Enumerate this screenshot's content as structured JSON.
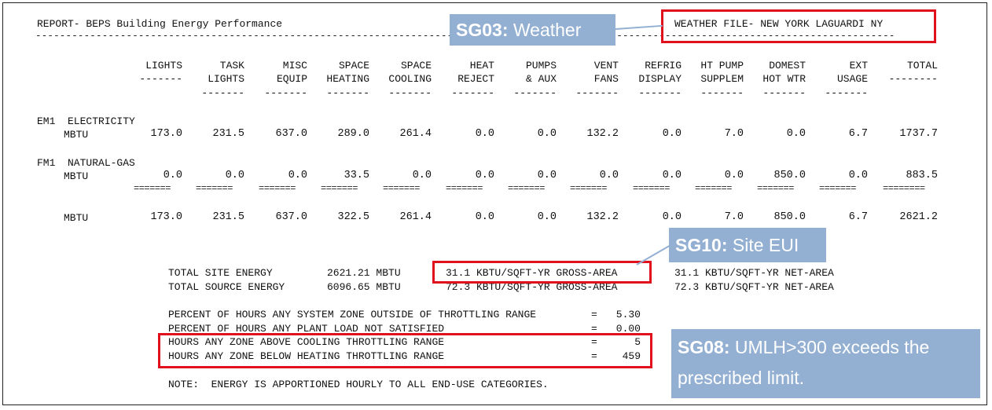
{
  "report_title": "REPORT- BEPS Building Energy Performance",
  "weather_file": "WEATHER FILE- NEW YORK LAGUARDI NY",
  "columns": [
    {
      "l1": "",
      "l2": "LIGHTS"
    },
    {
      "l1": "TASK",
      "l2": "LIGHTS"
    },
    {
      "l1": "MISC",
      "l2": "EQUIP"
    },
    {
      "l1": "SPACE",
      "l2": "HEATING"
    },
    {
      "l1": "SPACE",
      "l2": "COOLING"
    },
    {
      "l1": "HEAT",
      "l2": "REJECT"
    },
    {
      "l1": "PUMPS",
      "l2": "& AUX"
    },
    {
      "l1": "VENT",
      "l2": "FANS"
    },
    {
      "l1": "REFRIG",
      "l2": "DISPLAY"
    },
    {
      "l1": "HT PUMP",
      "l2": "SUPPLEM"
    },
    {
      "l1": "DOMEST",
      "l2": "HOT WTR"
    },
    {
      "l1": "EXT",
      "l2": "USAGE"
    },
    {
      "l1": "",
      "l2": "TOTAL"
    }
  ],
  "col_underline": "-------",
  "col_total_underline": "--------",
  "meters": [
    {
      "label": "EM1  ELECTRICITY",
      "unit": "MBTU",
      "values": [
        "173.0",
        "231.5",
        "637.0",
        "289.0",
        "261.4",
        "0.0",
        "0.0",
        "132.2",
        "0.0",
        "7.0",
        "0.0",
        "6.7",
        "1737.7"
      ]
    },
    {
      "label": "FM1  NATURAL-GAS",
      "unit": "MBTU",
      "values": [
        "0.0",
        "0.0",
        "0.0",
        "33.5",
        "0.0",
        "0.0",
        "0.0",
        "0.0",
        "0.0",
        "0.0",
        "850.0",
        "0.0",
        "883.5"
      ]
    }
  ],
  "sum_underline": "=======",
  "sum_total_underline": "========",
  "totals": {
    "unit": "MBTU",
    "values": [
      "173.0",
      "231.5",
      "637.0",
      "322.5",
      "261.4",
      "0.0",
      "0.0",
      "132.2",
      "0.0",
      "7.0",
      "850.0",
      "6.7",
      "2621.2"
    ]
  },
  "energy_summary": [
    {
      "label": "TOTAL SITE ENERGY",
      "value": "2621.21 MBTU",
      "gross": "31.1 KBTU/SQFT-YR GROSS-AREA",
      "net": "31.1 KBTU/SQFT-YR NET-AREA"
    },
    {
      "label": "TOTAL SOURCE ENERGY",
      "value": "6096.65 MBTU",
      "gross": "72.3 KBTU/SQFT-YR GROSS-AREA",
      "net": "72.3 KBTU/SQFT-YR NET-AREA"
    }
  ],
  "hours_stats": [
    {
      "label": "PERCENT OF HOURS ANY SYSTEM ZONE OUTSIDE OF THROTTLING RANGE",
      "value": "5.30"
    },
    {
      "label": "PERCENT OF HOURS ANY PLANT LOAD NOT SATISFIED",
      "value": "0.00"
    },
    {
      "label": "HOURS ANY ZONE ABOVE COOLING THROTTLING RANGE",
      "value": "5"
    },
    {
      "label": "HOURS ANY ZONE BELOW HEATING THROTTLING RANGE",
      "value": "459"
    }
  ],
  "note": "NOTE:  ENERGY IS APPORTIONED HOURLY TO ALL END-USE CATEGORIES.",
  "callouts": {
    "weather": {
      "tag": "SG03:",
      "text": " Weather"
    },
    "eui": {
      "tag": "SG10:",
      "text": " Site EUI"
    },
    "umlh": {
      "tag": "SG08:",
      "text": " UMLH>300 exceeds the prescribed limit."
    }
  },
  "colors": {
    "highlight_box": "#e0101c",
    "callout_bg": "#93afd2",
    "callout_text": "#ffffff"
  }
}
